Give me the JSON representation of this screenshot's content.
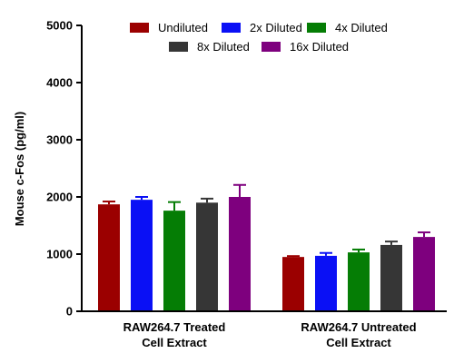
{
  "chart_data": {
    "type": "bar",
    "ylabel": "Mouse c-Fos (pg/ml)",
    "ylim": [
      0,
      5000
    ],
    "yticks": [
      "0",
      "1000",
      "2000",
      "3000",
      "4000",
      "5000"
    ],
    "ytick_values": [
      0,
      1000,
      2000,
      3000,
      4000,
      5000
    ],
    "grid": false,
    "legend_position": "top",
    "categories": [
      {
        "line1": "RAW264.7  Treated",
        "line2": "Cell Extract"
      },
      {
        "line1": "RAW264.7  Untreated",
        "line2": "Cell Extract"
      }
    ],
    "series": [
      {
        "name": "Undiluted",
        "color": "#9b0000",
        "values": [
          1870,
          950
        ],
        "errors": [
          50,
          15
        ]
      },
      {
        "name": "2x Diluted",
        "color": "#0a10f5",
        "values": [
          1950,
          970
        ],
        "errors": [
          50,
          50
        ]
      },
      {
        "name": "4x Diluted",
        "color": "#057d05",
        "values": [
          1760,
          1030
        ],
        "errors": [
          150,
          50
        ]
      },
      {
        "name": "8x Diluted",
        "color": "#363636",
        "values": [
          1900,
          1160
        ],
        "errors": [
          70,
          60
        ]
      },
      {
        "name": "16x Diluted",
        "color": "#7e007e",
        "values": [
          2000,
          1300
        ],
        "errors": [
          210,
          80
        ]
      }
    ]
  }
}
